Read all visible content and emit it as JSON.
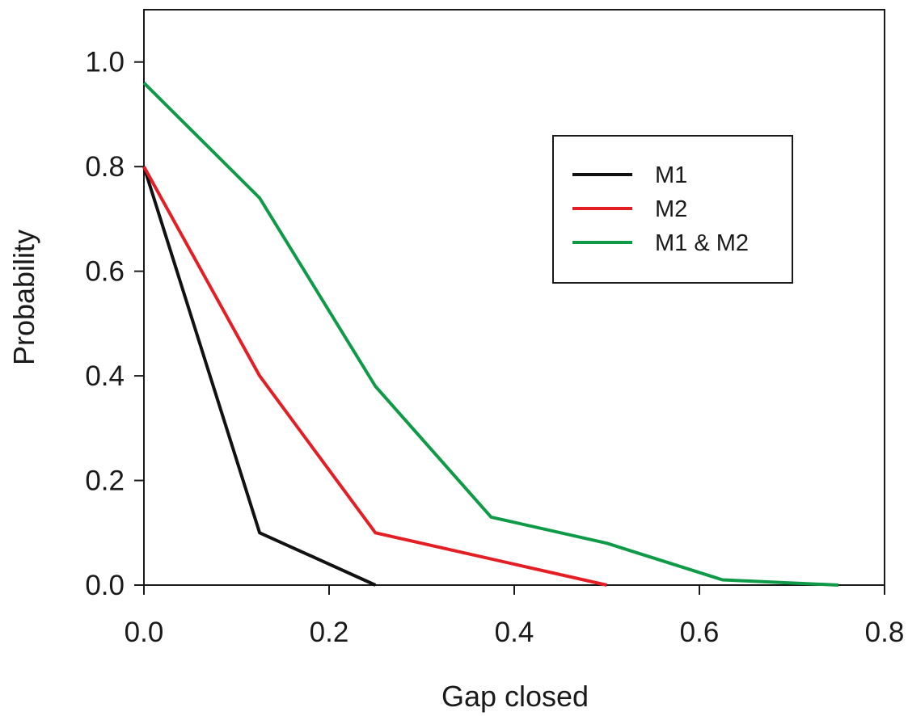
{
  "chart_data": {
    "type": "line",
    "xlabel": "Gap closed",
    "ylabel": "Probability",
    "xlim": [
      0.0,
      0.8
    ],
    "ylim": [
      0.0,
      1.1
    ],
    "x_ticks": [
      0.0,
      0.2,
      0.4,
      0.6,
      0.8
    ],
    "x_tick_labels": [
      "0.0",
      "0.2",
      "0.4",
      "0.6",
      "0.8"
    ],
    "y_ticks": [
      0.0,
      0.2,
      0.4,
      0.6,
      0.8,
      1.0
    ],
    "y_tick_labels": [
      "0.0",
      "0.2",
      "0.4",
      "0.6",
      "0.8",
      "1.0"
    ],
    "grid": false,
    "legend": {
      "position": "top-right"
    },
    "series": [
      {
        "name": "M1",
        "color": "#111111",
        "points": [
          [
            0.0,
            0.8
          ],
          [
            0.125,
            0.1
          ],
          [
            0.25,
            0.0
          ]
        ]
      },
      {
        "name": "M2",
        "color": "#e31e24",
        "points": [
          [
            0.0,
            0.8
          ],
          [
            0.125,
            0.4
          ],
          [
            0.25,
            0.1
          ],
          [
            0.5,
            0.0
          ]
        ]
      },
      {
        "name": "M1 & M2",
        "color": "#0f9a48",
        "points": [
          [
            0.0,
            0.96
          ],
          [
            0.125,
            0.74
          ],
          [
            0.25,
            0.38
          ],
          [
            0.375,
            0.13
          ],
          [
            0.5,
            0.08
          ],
          [
            0.625,
            0.01
          ],
          [
            0.75,
            0.0
          ]
        ]
      }
    ]
  }
}
